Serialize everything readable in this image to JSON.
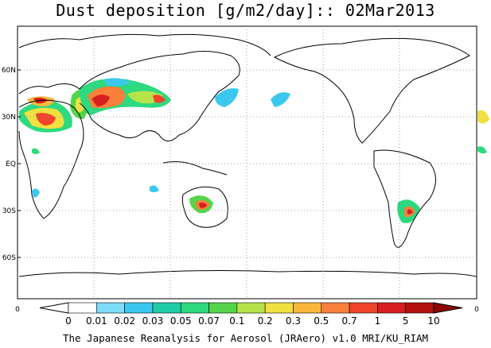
{
  "title": "Dust deposition [g/m2/day]:: 02Mar2013",
  "footer": "The Japanese Reanalysis for Aerosol (JRAero) v1.0 MRI/KU_RIAM",
  "lat_ticks": [
    "60N",
    "30N",
    "EQ",
    "30S",
    "60S"
  ],
  "lat_tick_values": [
    60,
    30,
    0,
    -30,
    -60
  ],
  "colorbar": {
    "end_label_left": "0",
    "end_label_right": "0",
    "labels": [
      "0",
      "0.01",
      "0.02",
      "0.03",
      "0.05",
      "0.07",
      "0.1",
      "0.2",
      "0.3",
      "0.5",
      "0.7",
      "1",
      "5",
      "10"
    ],
    "colors": [
      "#ffffff",
      "#ffffff",
      "#7fdcf8",
      "#3cc8ee",
      "#1ecca8",
      "#2ed97f",
      "#55d44a",
      "#b6e34a",
      "#f0e040",
      "#f8b73b",
      "#f8803a",
      "#f0442b",
      "#d81e1e",
      "#b41010",
      "#8c0808"
    ]
  },
  "map_colors": {
    "land_outline": "#000000",
    "ocean": "#ffffff",
    "grid": "#888888"
  }
}
